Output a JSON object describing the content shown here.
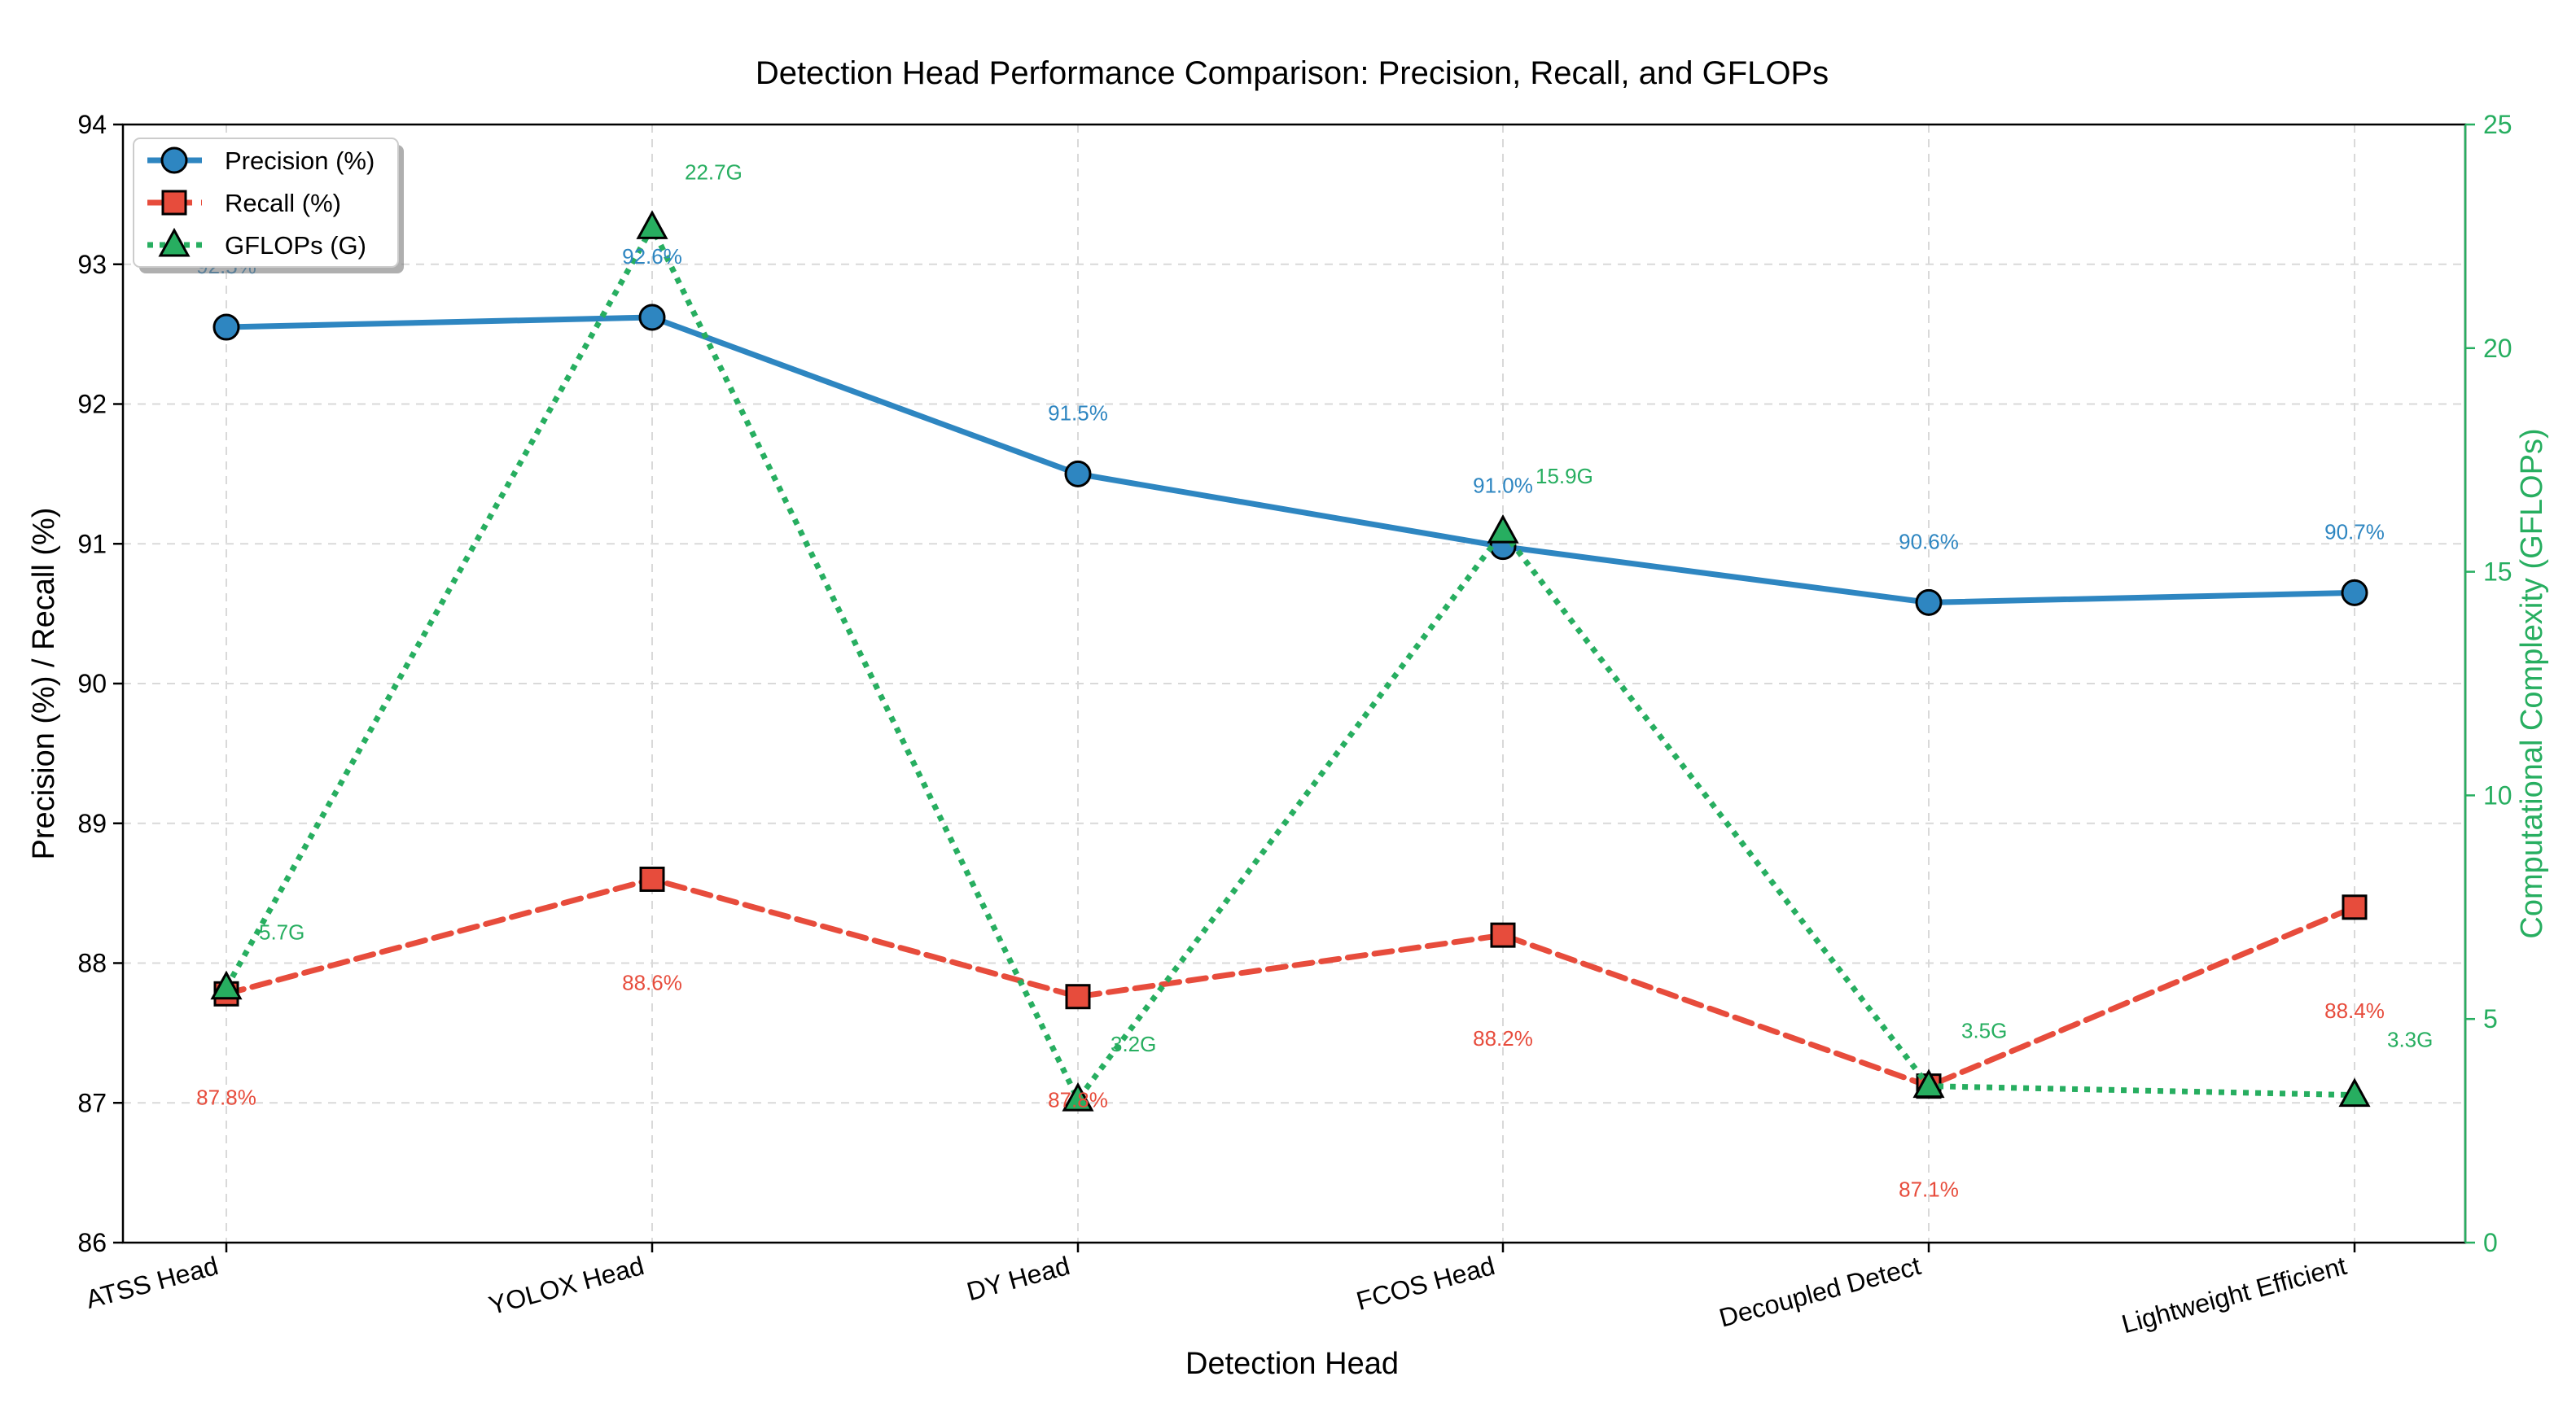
{
  "chart_data": {
    "type": "line",
    "title": "Detection Head Performance Comparison: Precision, Recall, and GFLOPs",
    "xlabel": "Detection Head",
    "ylabel": "Precision (%) / Recall (%)",
    "y2label": "Computational Complexity (GFLOPs)",
    "categories": [
      "ATSS Head",
      "YOLOX Head",
      "DY Head",
      "FCOS Head",
      "Decoupled Detect",
      "Lightweight Efficient"
    ],
    "ylim": [
      86,
      94
    ],
    "yticks": [
      "86",
      "87",
      "88",
      "89",
      "90",
      "91",
      "92",
      "93",
      "94"
    ],
    "y2lim": [
      0,
      25
    ],
    "y2ticks": [
      "0",
      "5",
      "10",
      "15",
      "20",
      "25"
    ],
    "grid": true,
    "legend_position": "top-left",
    "series": [
      {
        "name": "Precision (%)",
        "axis": "left",
        "color": "#2e86c1",
        "marker": "circle",
        "style": "solid",
        "values": [
          92.55,
          92.62,
          91.5,
          90.98,
          90.58,
          90.65
        ],
        "labels": [
          "92.5%",
          "92.6%",
          "91.5%",
          "91.0%",
          "90.6%",
          "90.7%"
        ]
      },
      {
        "name": "Recall (%)",
        "axis": "left",
        "color": "#e74c3c",
        "marker": "square",
        "style": "dashed",
        "values": [
          87.78,
          88.6,
          87.76,
          88.2,
          87.12,
          88.4
        ],
        "labels": [
          "87.8%",
          "88.6%",
          "87.8%",
          "88.2%",
          "87.1%",
          "88.4%"
        ]
      },
      {
        "name": "GFLOPs (G)",
        "axis": "right",
        "color": "#27ae60",
        "marker": "triangle",
        "style": "dotted",
        "values": [
          5.7,
          22.7,
          3.2,
          15.9,
          3.5,
          3.3
        ],
        "labels": [
          "5.7G",
          "22.7G",
          "3.2G",
          "15.9G",
          "3.5G",
          "3.3G"
        ]
      }
    ]
  }
}
